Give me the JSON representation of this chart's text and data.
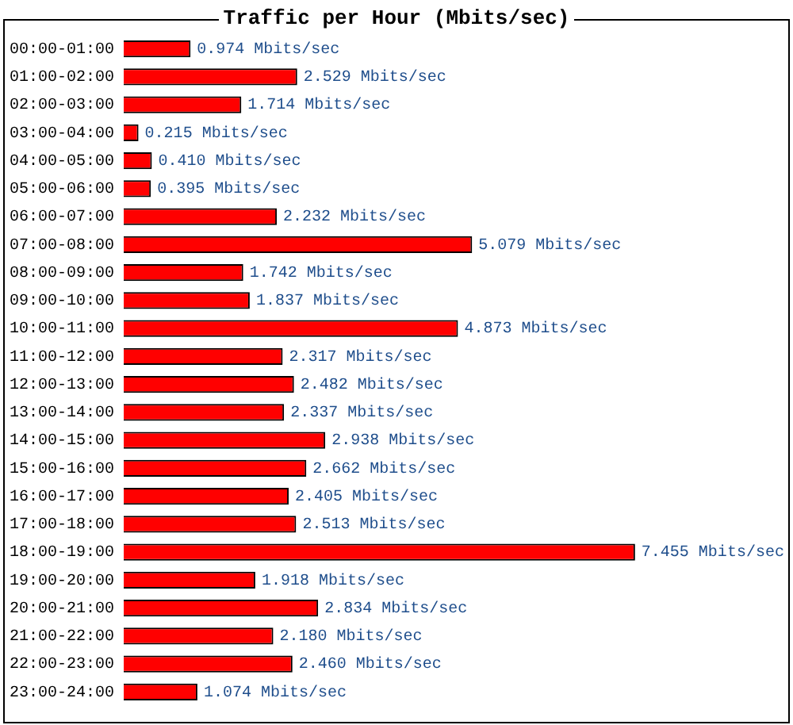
{
  "chart_data": {
    "type": "bar",
    "orientation": "horizontal",
    "title": "Traffic per Hour (Mbits/sec)",
    "categories": [
      "00:00-01:00",
      "01:00-02:00",
      "02:00-03:00",
      "03:00-04:00",
      "04:00-05:00",
      "05:00-06:00",
      "06:00-07:00",
      "07:00-08:00",
      "08:00-09:00",
      "09:00-10:00",
      "10:00-11:00",
      "11:00-12:00",
      "12:00-13:00",
      "13:00-14:00",
      "14:00-15:00",
      "15:00-16:00",
      "16:00-17:00",
      "17:00-18:00",
      "18:00-19:00",
      "19:00-20:00",
      "20:00-21:00",
      "21:00-22:00",
      "22:00-23:00",
      "23:00-24:00"
    ],
    "values": [
      0.974,
      2.529,
      1.714,
      0.215,
      0.41,
      0.395,
      2.232,
      5.079,
      1.742,
      1.837,
      4.873,
      2.317,
      2.482,
      2.337,
      2.938,
      2.662,
      2.405,
      2.513,
      7.455,
      1.918,
      2.834,
      2.18,
      2.46,
      1.074
    ],
    "value_labels": [
      "0.974 Mbits/sec",
      "2.529 Mbits/sec",
      "1.714 Mbits/sec",
      "0.215 Mbits/sec",
      "0.410 Mbits/sec",
      "0.395 Mbits/sec",
      "2.232 Mbits/sec",
      "5.079 Mbits/sec",
      "1.742 Mbits/sec",
      "1.837 Mbits/sec",
      "4.873 Mbits/sec",
      "2.317 Mbits/sec",
      "2.482 Mbits/sec",
      "2.337 Mbits/sec",
      "2.938 Mbits/sec",
      "2.662 Mbits/sec",
      "2.405 Mbits/sec",
      "2.513 Mbits/sec",
      "7.455 Mbits/sec",
      "1.918 Mbits/sec",
      "2.834 Mbits/sec",
      "2.180 Mbits/sec",
      "2.460 Mbits/sec",
      "1.074 Mbits/sec"
    ],
    "color": "#ff0000",
    "grid": false,
    "legend": false
  }
}
